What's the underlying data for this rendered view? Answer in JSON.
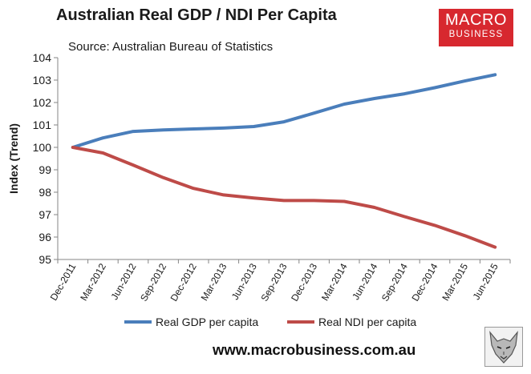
{
  "header": {
    "title": "Australian Real GDP / NDI Per Capita",
    "source": "Source: Australian Bureau of Statistics"
  },
  "logo": {
    "line1": "MACRO",
    "line2": "BUSINESS",
    "color": "#d7282f"
  },
  "footer": {
    "url": "www.macrobusiness.com.au"
  },
  "badge": {
    "icon": "wolf-icon"
  },
  "chart_data": {
    "type": "line",
    "title": "Australian Real GDP / NDI Per Capita",
    "subtitle": "Source: Australian Bureau of Statistics",
    "xlabel": "",
    "ylabel": "Index (Trend)",
    "ylim": [
      95,
      104
    ],
    "yticks": [
      95,
      96,
      97,
      98,
      99,
      100,
      101,
      102,
      103,
      104
    ],
    "grid": false,
    "legend_position": "bottom",
    "categories": [
      "Dec-2011",
      "Mar-2012",
      "Jun-2012",
      "Sep-2012",
      "Dec-2012",
      "Mar-2013",
      "Jun-2013",
      "Sep-2013",
      "Dec-2013",
      "Mar-2014",
      "Jun-2014",
      "Sep-2014",
      "Dec-2014",
      "Mar-2015",
      "Jun-2015"
    ],
    "series": [
      {
        "name": "Real GDP per capita",
        "color": "#4a7ebb",
        "values": [
          100.0,
          100.42,
          100.71,
          100.78,
          100.82,
          100.86,
          100.93,
          101.14,
          101.53,
          101.93,
          102.18,
          102.39,
          102.66,
          102.96,
          103.24
        ]
      },
      {
        "name": "Real NDI per capita",
        "color": "#be4b48",
        "values": [
          100.0,
          99.75,
          99.21,
          98.65,
          98.17,
          97.88,
          97.74,
          97.63,
          97.63,
          97.59,
          97.32,
          96.91,
          96.52,
          96.06,
          95.55
        ]
      }
    ]
  }
}
